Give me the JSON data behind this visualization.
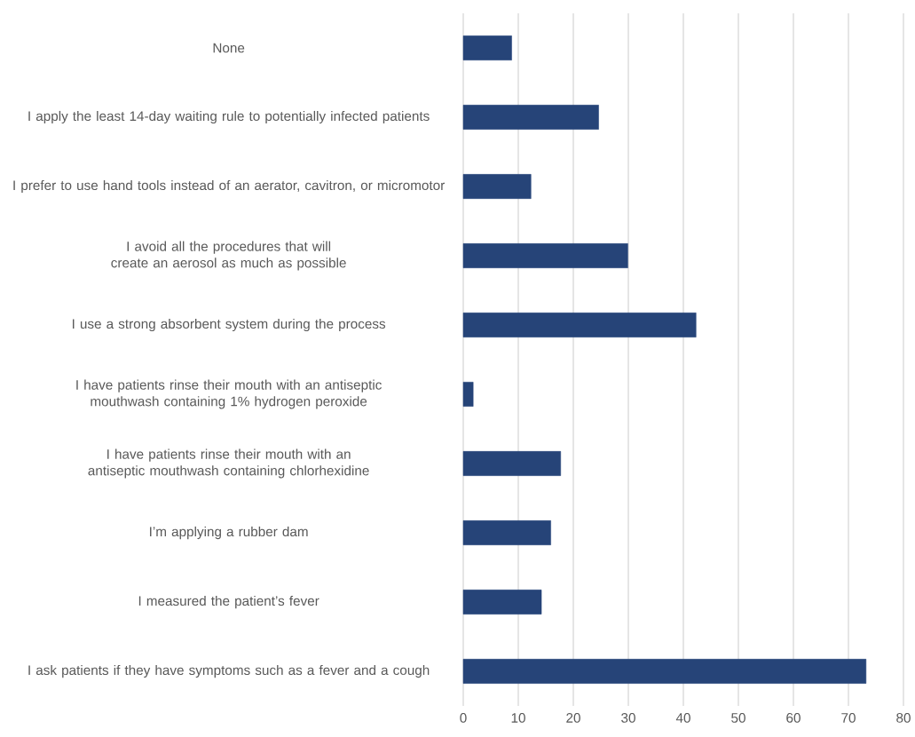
{
  "chart_data": {
    "type": "bar",
    "orientation": "horizontal",
    "categories": [
      "None",
      "I apply the least 14-day waiting rule to potentially infected patients",
      "I prefer to use hand tools instead of an aerator, cavitron, or micromotor",
      "I avoid all the procedures that will create an aerosol as much as possible",
      "I use a strong absorbent system during the process",
      "I have patients rinse their mouth with an antiseptic mouthwash containing 1% hydrogen peroxide",
      "I have patients rinse their mouth with an antiseptic mouthwash containing chlorhexidine",
      "I’m applying a rubber dam",
      "I measured the patient’s fever",
      "I ask patients if they have symptoms such as a fever and a cough"
    ],
    "values": [
      8.8,
      24.6,
      12.3,
      29.9,
      42.3,
      1.8,
      17.7,
      15.9,
      14.2,
      73.2
    ],
    "color": "#264478",
    "xlim": [
      0,
      80
    ],
    "xticks": [
      0,
      10,
      20,
      30,
      40,
      50,
      60,
      70,
      80
    ],
    "grid": "x"
  }
}
